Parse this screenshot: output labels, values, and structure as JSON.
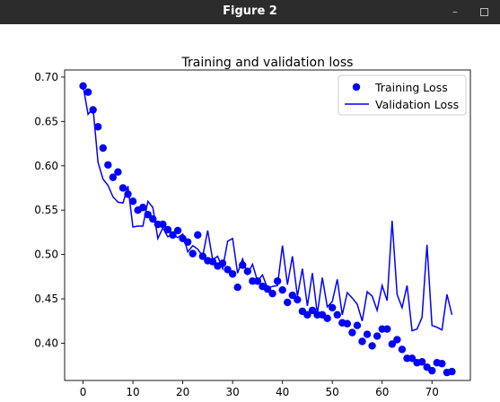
{
  "window": {
    "title": "Figure 2",
    "minimize_glyph": "–",
    "maximize_icon": "maximize-icon"
  },
  "chart_data": {
    "type": "line",
    "title": "Training and validation loss",
    "xlabel": "",
    "ylabel": "",
    "xlim": [
      -3.7,
      77.7
    ],
    "ylim": [
      0.358,
      0.708
    ],
    "xticks": [
      0,
      10,
      20,
      30,
      40,
      50,
      60,
      70
    ],
    "yticks": [
      0.4,
      0.45,
      0.5,
      0.55,
      0.6,
      0.65,
      0.7
    ],
    "ytick_labels": [
      "0.40",
      "0.45",
      "0.50",
      "0.55",
      "0.60",
      "0.65",
      "0.70"
    ],
    "grid": false,
    "legend_position": "top-right",
    "series": [
      {
        "name": "Training Loss",
        "style": "markers",
        "color": "#0000ff",
        "x": [
          0,
          1,
          2,
          3,
          4,
          5,
          6,
          7,
          8,
          9,
          10,
          11,
          12,
          13,
          14,
          15,
          16,
          17,
          18,
          19,
          20,
          21,
          22,
          23,
          24,
          25,
          26,
          27,
          28,
          29,
          30,
          31,
          32,
          33,
          34,
          35,
          36,
          37,
          38,
          39,
          40,
          41,
          42,
          43,
          44,
          45,
          46,
          47,
          48,
          49,
          50,
          51,
          52,
          53,
          54,
          55,
          56,
          57,
          58,
          59,
          60,
          61,
          62,
          63,
          64,
          65,
          66,
          67,
          68,
          69,
          70,
          71,
          72,
          73,
          74
        ],
        "values": [
          0.69,
          0.683,
          0.663,
          0.644,
          0.62,
          0.601,
          0.587,
          0.593,
          0.575,
          0.568,
          0.56,
          0.55,
          0.553,
          0.545,
          0.54,
          0.534,
          0.534,
          0.528,
          0.522,
          0.527,
          0.518,
          0.514,
          0.501,
          0.522,
          0.498,
          0.493,
          0.492,
          0.487,
          0.49,
          0.483,
          0.478,
          0.463,
          0.488,
          0.481,
          0.47,
          0.47,
          0.464,
          0.461,
          0.456,
          0.47,
          0.46,
          0.446,
          0.454,
          0.449,
          0.436,
          0.432,
          0.437,
          0.432,
          0.432,
          0.428,
          0.44,
          0.432,
          0.423,
          0.422,
          0.412,
          0.42,
          0.402,
          0.41,
          0.397,
          0.408,
          0.416,
          0.416,
          0.399,
          0.404,
          0.393,
          0.383,
          0.383,
          0.378,
          0.379,
          0.373,
          0.369,
          0.378,
          0.377,
          0.367,
          0.368
        ]
      },
      {
        "name": "Validation Loss",
        "style": "line",
        "color": "#0000ff",
        "x": [
          0,
          1,
          2,
          3,
          4,
          5,
          6,
          7,
          8,
          9,
          10,
          11,
          12,
          13,
          14,
          15,
          16,
          17,
          18,
          19,
          20,
          21,
          22,
          23,
          24,
          25,
          26,
          27,
          28,
          29,
          30,
          31,
          32,
          33,
          34,
          35,
          36,
          37,
          38,
          39,
          40,
          41,
          42,
          43,
          44,
          45,
          46,
          47,
          48,
          49,
          50,
          51,
          52,
          53,
          54,
          55,
          56,
          57,
          58,
          59,
          60,
          61,
          62,
          63,
          64,
          65,
          66,
          67,
          68,
          69,
          70,
          71,
          72,
          73,
          74
        ],
        "values": [
          0.69,
          0.658,
          0.665,
          0.604,
          0.585,
          0.578,
          0.565,
          0.559,
          0.558,
          0.577,
          0.531,
          0.532,
          0.532,
          0.56,
          0.553,
          0.518,
          0.53,
          0.52,
          0.523,
          0.519,
          0.523,
          0.503,
          0.51,
          0.506,
          0.498,
          0.527,
          0.494,
          0.498,
          0.484,
          0.515,
          0.518,
          0.479,
          0.495,
          0.478,
          0.489,
          0.47,
          0.477,
          0.462,
          0.464,
          0.465,
          0.51,
          0.466,
          0.498,
          0.453,
          0.484,
          0.442,
          0.479,
          0.433,
          0.474,
          0.441,
          0.447,
          0.472,
          0.432,
          0.457,
          0.451,
          0.444,
          0.425,
          0.458,
          0.453,
          0.437,
          0.465,
          0.448,
          0.538,
          0.455,
          0.44,
          0.465,
          0.414,
          0.416,
          0.429,
          0.511,
          0.42,
          0.418,
          0.415,
          0.455,
          0.432
        ]
      }
    ]
  }
}
